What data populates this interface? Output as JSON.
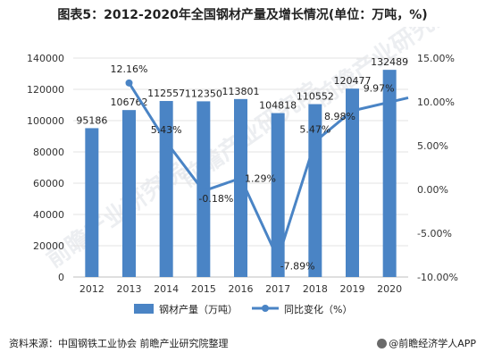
{
  "title": "图表5：2012-2020年全国钢材产量及增长情况(单位：万吨，%)",
  "source": "资料来源：中国钢铁工业协会 前瞻产业研究院整理",
  "brand": "@前瞻经济学人APP",
  "watermark": "前瞻产业研究院",
  "colors": {
    "bar": "#4a84c5",
    "line": "#4a84c5",
    "grid": "#e3e3e3",
    "axis_text": "#333333"
  },
  "chart_data": {
    "type": "bar",
    "categories": [
      "2012",
      "2013",
      "2014",
      "2015",
      "2016",
      "2017",
      "2018",
      "2019",
      "2020"
    ],
    "series": [
      {
        "name": "钢材产量（万吨）",
        "type": "bar",
        "axis": "left",
        "values": [
          95186,
          106762,
          112557,
          112350,
          113801,
          104818,
          110552,
          120477,
          132489
        ],
        "labels": [
          "95186",
          "106762",
          "112557",
          "112350",
          "113801",
          "104818",
          "110552",
          "120477",
          "132489"
        ]
      },
      {
        "name": "同比变化（%）",
        "type": "line",
        "axis": "right",
        "values": [
          null,
          12.16,
          5.43,
          -0.18,
          1.29,
          -7.89,
          5.47,
          8.98,
          9.97
        ],
        "labels": [
          "",
          "12.16%",
          "5.43%",
          "-0.18%",
          "1.29%",
          "-7.89%",
          "5.47%",
          "8.98%",
          "9.97%"
        ]
      }
    ],
    "y_left": {
      "min": 0,
      "max": 140000,
      "ticks": [
        "0",
        "20000",
        "40000",
        "60000",
        "80000",
        "100000",
        "120000",
        "140000"
      ]
    },
    "y_right": {
      "min": -10,
      "max": 15,
      "ticks": [
        "-10.00%",
        "-5.00%",
        "0.00%",
        "5.00%",
        "10.00%",
        "15.00%"
      ]
    },
    "grid": true,
    "legend_position": "bottom"
  }
}
